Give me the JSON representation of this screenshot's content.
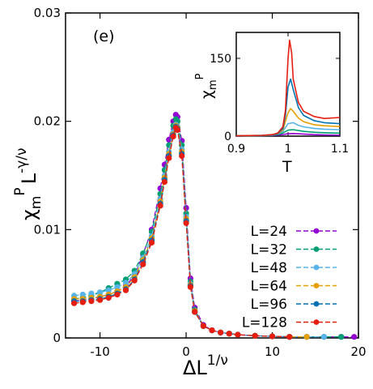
{
  "chart_data": {
    "type": "scatter",
    "panel_label": "(e)",
    "xlabel": "ΔL",
    "xlabel_sup": "1/ν",
    "ylabel": "χ",
    "ylabel_sub": "m",
    "ylabel_sup_p": "P",
    "ylabel_L": "L",
    "ylabel_sup2": "-γ/ν",
    "xlim": [
      -14,
      20
    ],
    "ylim": [
      0,
      0.03
    ],
    "xticks": [
      -10,
      0,
      10,
      20
    ],
    "xtick_labels": [
      "-10",
      "0",
      "10",
      "20"
    ],
    "yticks": [
      0,
      0.01,
      0.02,
      0.03
    ],
    "ytick_labels": [
      "0",
      "0.01",
      "0.02",
      "0.03"
    ],
    "legend_position": "bottom-right",
    "series": [
      {
        "name": "L=24",
        "color": "#9400d3",
        "x": [
          -13,
          -12,
          -11,
          -10,
          -9,
          -8,
          -7,
          -6,
          -5,
          -4,
          -3,
          -2.5,
          -2,
          -1.5,
          -1.2,
          -1,
          -0.5,
          0,
          0.5,
          1,
          2,
          3,
          4,
          5,
          6,
          8,
          10,
          12,
          14,
          16,
          18,
          19.5
        ],
        "y": [
          0.0034,
          0.0035,
          0.0036,
          0.0038,
          0.004,
          0.0043,
          0.0048,
          0.0058,
          0.0077,
          0.01,
          0.0138,
          0.016,
          0.0183,
          0.02,
          0.0206,
          0.0204,
          0.0182,
          0.012,
          0.0055,
          0.0028,
          0.0012,
          0.0007,
          0.0005,
          0.0004,
          0.0003,
          0.0002,
          0.00015,
          0.0001,
          0.0001,
          0.0001,
          0.0001,
          0.0001
        ]
      },
      {
        "name": "L=32",
        "color": "#009e73",
        "x": [
          -13,
          -12,
          -11,
          -10,
          -9,
          -8,
          -7,
          -6,
          -5,
          -4,
          -3,
          -2.5,
          -2,
          -1.5,
          -1.2,
          -1,
          -0.5,
          0,
          0.5,
          1,
          2,
          3,
          4,
          5,
          6,
          8,
          10,
          12,
          14,
          16,
          18
        ],
        "y": [
          0.0036,
          0.0037,
          0.0039,
          0.0042,
          0.0046,
          0.005,
          0.0054,
          0.0062,
          0.0078,
          0.0098,
          0.0133,
          0.0155,
          0.0178,
          0.0196,
          0.0202,
          0.02,
          0.0178,
          0.0115,
          0.0052,
          0.0026,
          0.0011,
          0.0007,
          0.0005,
          0.0004,
          0.0003,
          0.0002,
          0.00015,
          0.0001,
          0.0001,
          0.0001,
          0.0001
        ]
      },
      {
        "name": "L=48",
        "color": "#56b4e9",
        "x": [
          -13,
          -12,
          -11,
          -10,
          -9,
          -8,
          -7,
          -6,
          -5,
          -4,
          -3,
          -2.5,
          -2,
          -1.5,
          -1.2,
          -1,
          -0.5,
          0,
          0.5,
          1,
          2,
          3,
          4,
          5,
          6,
          8,
          10,
          12,
          14,
          16
        ],
        "y": [
          0.0039,
          0.004,
          0.0041,
          0.0042,
          0.0044,
          0.0047,
          0.0051,
          0.0059,
          0.0074,
          0.0094,
          0.0128,
          0.015,
          0.0172,
          0.019,
          0.0197,
          0.0195,
          0.0174,
          0.0112,
          0.005,
          0.0025,
          0.0011,
          0.0007,
          0.0005,
          0.0004,
          0.0003,
          0.0002,
          0.00015,
          0.0001,
          0.0001,
          0.0001
        ]
      },
      {
        "name": "L=64",
        "color": "#e69f00",
        "x": [
          -13,
          -12,
          -11,
          -10,
          -9,
          -8,
          -7,
          -6,
          -5,
          -4,
          -3,
          -2.5,
          -2,
          -1.5,
          -1.2,
          -1,
          -0.5,
          0,
          0.5,
          1,
          2,
          3,
          4,
          5,
          6,
          8,
          10,
          12,
          14
        ],
        "y": [
          0.0036,
          0.0036,
          0.0037,
          0.0038,
          0.004,
          0.0043,
          0.0047,
          0.0056,
          0.0072,
          0.0092,
          0.0126,
          0.0148,
          0.017,
          0.0188,
          0.0196,
          0.0194,
          0.0172,
          0.011,
          0.0049,
          0.0025,
          0.0011,
          0.0007,
          0.0005,
          0.0004,
          0.0003,
          0.0002,
          0.00015,
          0.0001,
          0.0001
        ]
      },
      {
        "name": "L=96",
        "color": "#0072b2",
        "x": [
          -13,
          -12,
          -11,
          -10,
          -9,
          -8,
          -7,
          -6,
          -5,
          -4,
          -3,
          -2.5,
          -2,
          -1.5,
          -1.2,
          -1,
          -0.5,
          0,
          0.5,
          1,
          2,
          3,
          4,
          5,
          6,
          8,
          10,
          12
        ],
        "y": [
          0.0034,
          0.0034,
          0.0035,
          0.0036,
          0.0038,
          0.0041,
          0.0045,
          0.0054,
          0.007,
          0.009,
          0.0124,
          0.0146,
          0.0168,
          0.0187,
          0.0195,
          0.0193,
          0.017,
          0.0108,
          0.0048,
          0.0024,
          0.0011,
          0.0007,
          0.0005,
          0.0004,
          0.0003,
          0.0002,
          0.00015,
          0.0001
        ]
      },
      {
        "name": "L=128",
        "color": "#e51e10",
        "x": [
          -13,
          -12,
          -11,
          -10,
          -9,
          -8,
          -7,
          -6,
          -5,
          -4,
          -3,
          -2.5,
          -2,
          -1.5,
          -1.2,
          -1,
          -0.5,
          0,
          0.5,
          1,
          2,
          3,
          4,
          5,
          6,
          8,
          10,
          12
        ],
        "y": [
          0.0032,
          0.0033,
          0.0034,
          0.0035,
          0.0037,
          0.004,
          0.0044,
          0.0053,
          0.0068,
          0.0088,
          0.0122,
          0.0144,
          0.0166,
          0.0186,
          0.0194,
          0.0192,
          0.0168,
          0.0106,
          0.0047,
          0.0024,
          0.0011,
          0.0007,
          0.0005,
          0.0004,
          0.0003,
          0.0002,
          0.00015,
          0.0001
        ]
      }
    ],
    "inset": {
      "type": "line",
      "xlabel": "T",
      "ylabel": "χ",
      "ylabel_sub": "m",
      "ylabel_sup": "P",
      "xlim": [
        0.9,
        1.1
      ],
      "ylim": [
        0,
        200
      ],
      "xticks": [
        0.9,
        1.0,
        1.1
      ],
      "xtick_labels": [
        "0.9",
        "1",
        "1.1"
      ],
      "yticks": [
        0,
        150
      ],
      "ytick_labels": [
        "0",
        "150"
      ],
      "series": [
        {
          "name": "L=24",
          "color": "#9400d3",
          "x": [
            0.9,
            0.95,
            0.97,
            0.98,
            0.99,
            1.0,
            1.01,
            1.02,
            1.03,
            1.05,
            1.07,
            1.1
          ],
          "y": [
            0.3,
            0.8,
            1.3,
            2.0,
            3.2,
            4.6,
            5.0,
            4.6,
            4.0,
            3.0,
            2.4,
            1.9
          ]
        },
        {
          "name": "L=32",
          "color": "#009e73",
          "x": [
            0.9,
            0.95,
            0.97,
            0.98,
            0.99,
            1.0,
            1.01,
            1.02,
            1.03,
            1.05,
            1.07,
            1.1
          ],
          "y": [
            0.4,
            1.0,
            1.8,
            3.0,
            6.0,
            11.5,
            12.5,
            10.8,
            9.2,
            7.5,
            6.5,
            5.8
          ]
        },
        {
          "name": "L=48",
          "color": "#56b4e9",
          "x": [
            0.9,
            0.95,
            0.97,
            0.98,
            0.99,
            1.0,
            1.01,
            1.02,
            1.03,
            1.05,
            1.07,
            1.1
          ],
          "y": [
            0.5,
            1.2,
            2.2,
            4.0,
            9.0,
            24.0,
            26.0,
            21.0,
            18.0,
            15.0,
            13.5,
            12.5
          ]
        },
        {
          "name": "L=64",
          "color": "#e69f00",
          "x": [
            0.9,
            0.95,
            0.97,
            0.98,
            0.99,
            1.0,
            1.005,
            1.01,
            1.02,
            1.03,
            1.05,
            1.07,
            1.1
          ],
          "y": [
            0.5,
            1.3,
            2.5,
            4.5,
            12.0,
            45.0,
            53.0,
            48.0,
            35.0,
            28.0,
            22.0,
            20.0,
            18.5
          ]
        },
        {
          "name": "L=96",
          "color": "#0072b2",
          "x": [
            0.9,
            0.95,
            0.97,
            0.98,
            0.99,
            0.995,
            1.0,
            1.005,
            1.01,
            1.02,
            1.03,
            1.05,
            1.07,
            1.1
          ],
          "y": [
            0.6,
            1.4,
            2.7,
            5.0,
            15.0,
            40.0,
            95.0,
            110.0,
            90.0,
            55.0,
            40.0,
            30.0,
            26.0,
            24.0
          ]
        },
        {
          "name": "L=128",
          "color": "#e51e10",
          "x": [
            0.9,
            0.95,
            0.97,
            0.98,
            0.99,
            0.995,
            1.0,
            1.003,
            1.007,
            1.01,
            1.02,
            1.03,
            1.05,
            1.07,
            1.1
          ],
          "y": [
            0.6,
            1.5,
            3.0,
            6.0,
            18.0,
            50.0,
            150.0,
            185.0,
            160.0,
            110.0,
            65.0,
            48.0,
            38.0,
            34.0,
            36.0
          ]
        }
      ]
    }
  }
}
